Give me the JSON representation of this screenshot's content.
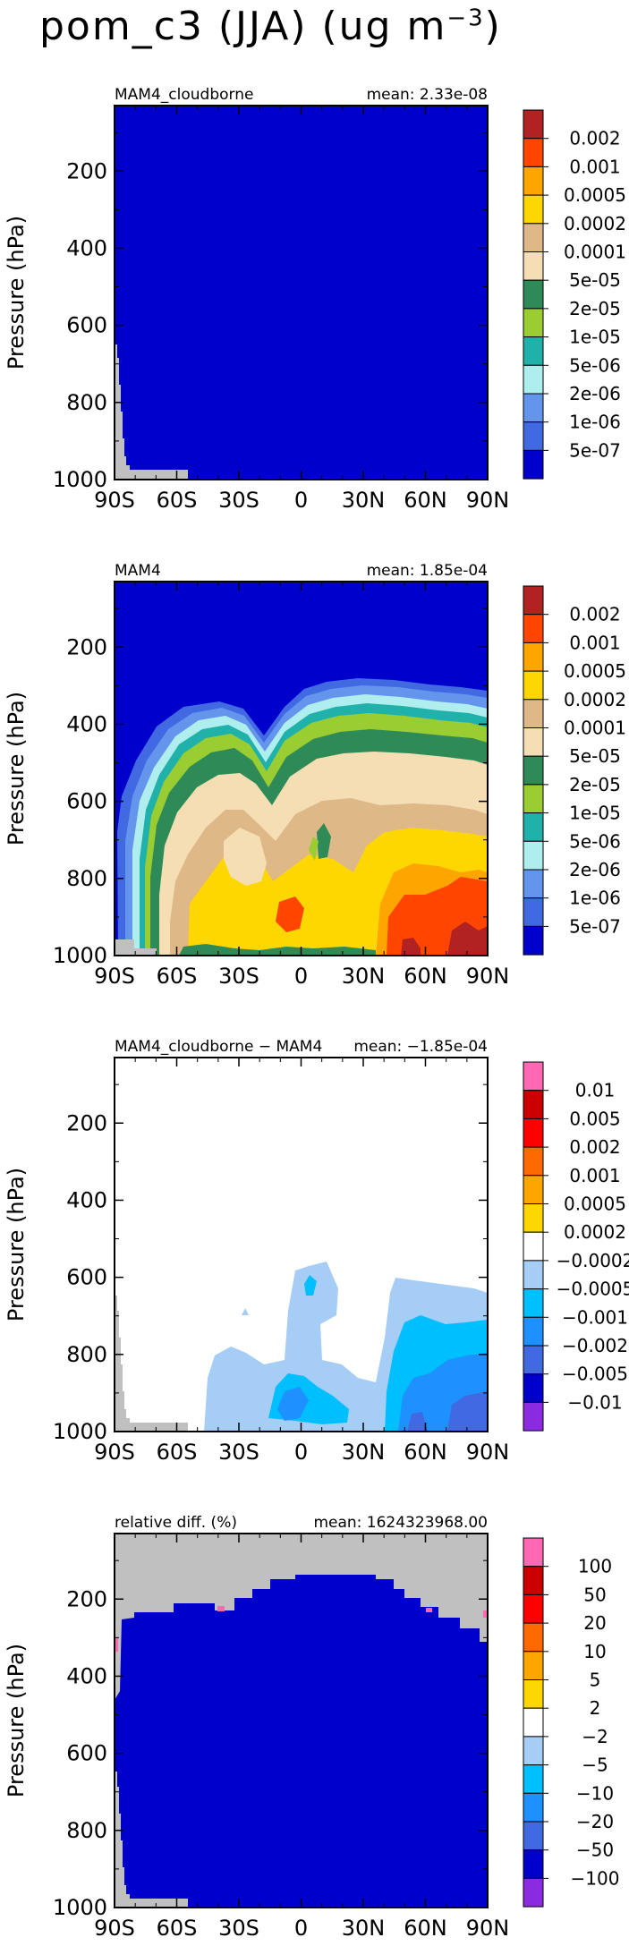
{
  "page": {
    "title_main": "pom_c3 (JJA) (ug m",
    "title_exp": "−3",
    "title_close": ")"
  },
  "colors": {
    "axis": "#000000",
    "missing": "#c0c0c0",
    "background": "#ffffff"
  },
  "chart_data": [
    {
      "type": "heatmap",
      "title": "MAM4_cloudborne",
      "mean_label": "mean: 2.33e-08",
      "ylabel": "Pressure (hPa)",
      "y_ticks": [
        "200",
        "400",
        "600",
        "800",
        "1000"
      ],
      "x_ticks": [
        "90S",
        "60S",
        "30S",
        "0",
        "30N",
        "60N",
        "90N"
      ],
      "xlim": [
        -90,
        90
      ],
      "ylim": [
        1000,
        30
      ],
      "legend_labels": [
        "0.002",
        "0.001",
        "0.0005",
        "0.0002",
        "0.0001",
        "5e-05",
        "2e-05",
        "1e-05",
        "5e-06",
        "2e-06",
        "1e-06",
        "5e-07"
      ],
      "legend_colors": [
        "#b22222",
        "#ff4500",
        "#ffa500",
        "#ffd700",
        "#deb887",
        "#f5deb3",
        "#2e8b57",
        "#9acd32",
        "#20b2aa",
        "#afeeee",
        "#6495ed",
        "#4169e1",
        "#0000cd"
      ],
      "fill_level": "<5e-07 everywhere"
    },
    {
      "type": "heatmap",
      "title": "MAM4",
      "mean_label": "mean: 1.85e-04",
      "ylabel": "Pressure (hPa)",
      "y_ticks": [
        "200",
        "400",
        "600",
        "800",
        "1000"
      ],
      "x_ticks": [
        "90S",
        "60S",
        "30S",
        "0",
        "30N",
        "60N",
        "90N"
      ],
      "xlim": [
        -90,
        90
      ],
      "ylim": [
        1000,
        30
      ],
      "legend_labels": [
        "0.002",
        "0.001",
        "0.0005",
        "0.0002",
        "0.0001",
        "5e-05",
        "2e-05",
        "1e-05",
        "5e-06",
        "2e-06",
        "1e-06",
        "5e-07"
      ],
      "legend_colors": [
        "#b22222",
        "#ff4500",
        "#ffa500",
        "#ffd700",
        "#deb887",
        "#f5deb3",
        "#2e8b57",
        "#9acd32",
        "#20b2aa",
        "#afeeee",
        "#6495ed",
        "#4169e1",
        "#0000cd"
      ]
    },
    {
      "type": "heatmap",
      "title": "MAM4_cloudborne − MAM4",
      "mean_label": "mean: −1.85e-04",
      "ylabel": "Pressure (hPa)",
      "y_ticks": [
        "200",
        "400",
        "600",
        "800",
        "1000"
      ],
      "x_ticks": [
        "90S",
        "60S",
        "30S",
        "0",
        "30N",
        "60N",
        "90N"
      ],
      "xlim": [
        -90,
        90
      ],
      "ylim": [
        1000,
        30
      ],
      "legend_labels": [
        "0.01",
        "0.005",
        "0.002",
        "0.001",
        "0.0005",
        "0.0002",
        "−0.0002",
        "−0.0005",
        "−0.001",
        "−0.002",
        "−0.005",
        "−0.01"
      ],
      "legend_colors": [
        "#ff69b4",
        "#cc0000",
        "#ff0000",
        "#ff6a00",
        "#ffa500",
        "#ffd700",
        "#ffffff",
        "#a6cdf5",
        "#00bfff",
        "#1e90ff",
        "#4169e1",
        "#0000cd",
        "#8a2be2"
      ]
    },
    {
      "type": "heatmap",
      "title": "relative diff. (%)",
      "mean_label": "mean: 1624323968.00",
      "ylabel": "Pressure (hPa)",
      "y_ticks": [
        "200",
        "400",
        "600",
        "800",
        "1000"
      ],
      "x_ticks": [
        "90S",
        "60S",
        "30S",
        "0",
        "30N",
        "60N",
        "90N"
      ],
      "xlim": [
        -90,
        90
      ],
      "ylim": [
        1000,
        30
      ],
      "legend_labels": [
        "100",
        "50",
        "20",
        "10",
        "5",
        "2",
        "−2",
        "−5",
        "−10",
        "−20",
        "−50",
        "−100"
      ],
      "legend_colors": [
        "#ff69b4",
        "#cc0000",
        "#ff0000",
        "#ff6a00",
        "#ffa500",
        "#ffd700",
        "#ffffff",
        "#a6cdf5",
        "#00bfff",
        "#1e90ff",
        "#4169e1",
        "#0000cd",
        "#8a2be2"
      ]
    }
  ]
}
